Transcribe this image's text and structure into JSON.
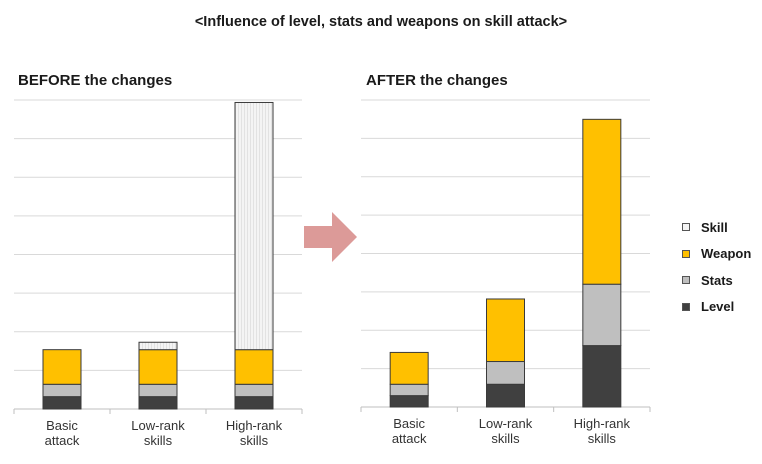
{
  "title": "<Influence of level, stats and weapons on skill attack>",
  "colors": {
    "Skill": "#f4f4f4",
    "Weapon": "#ffc000",
    "Stats": "#bfbfbf",
    "Level": "#404040",
    "arrow": "#dc9a98",
    "grid": "#d9d9d9",
    "axis": "#bfbfbf"
  },
  "legend": {
    "order": [
      "Skill",
      "Weapon",
      "Stats",
      "Level"
    ],
    "labels": [
      "Skill",
      "Weapon",
      "Stats",
      "Level"
    ]
  },
  "arrow_icon": "right-arrow",
  "chart_data": [
    {
      "type": "bar",
      "stacked": true,
      "title": "BEFORE the changes",
      "categories": [
        "Basic\nattack",
        "Low-rank\nskills",
        "High-rank\nskills"
      ],
      "series": [
        {
          "name": "Level",
          "values": [
            1.0,
            1.0,
            1.0
          ]
        },
        {
          "name": "Stats",
          "values": [
            1.0,
            1.0,
            1.0
          ]
        },
        {
          "name": "Weapon",
          "values": [
            2.8,
            2.8,
            2.8
          ]
        },
        {
          "name": "Skill",
          "values": [
            0,
            0.6,
            20.0
          ]
        }
      ],
      "ylim": [
        0,
        25
      ],
      "grid": true,
      "xlabel": "",
      "ylabel": ""
    },
    {
      "type": "bar",
      "stacked": true,
      "title": "AFTER the changes",
      "categories": [
        "Basic\nattack",
        "Low-rank\nskills",
        "High-rank\nskills"
      ],
      "series": [
        {
          "name": "Level",
          "values": [
            1.0,
            2.0,
            5.4
          ]
        },
        {
          "name": "Stats",
          "values": [
            1.0,
            2.0,
            5.4
          ]
        },
        {
          "name": "Weapon",
          "values": [
            2.8,
            5.5,
            14.5
          ]
        },
        {
          "name": "Skill",
          "values": [
            0,
            0,
            0
          ]
        }
      ],
      "ylim": [
        0,
        27
      ],
      "grid": true,
      "xlabel": "",
      "ylabel": ""
    }
  ]
}
